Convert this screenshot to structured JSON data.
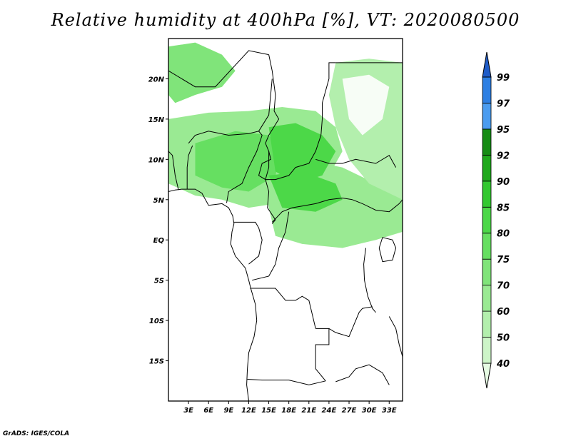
{
  "title": "Relative humidity at 400hPa [%], VT: 2020080500",
  "credit": "GrADS: IGES/COLA",
  "map": {
    "lon_range": [
      0,
      35
    ],
    "lat_range": [
      -20,
      25
    ],
    "lat_ticks": [
      {
        "value": 20,
        "label": "20N"
      },
      {
        "value": 15,
        "label": "15N"
      },
      {
        "value": 10,
        "label": "10N"
      },
      {
        "value": 5,
        "label": "5N"
      },
      {
        "value": 0,
        "label": "EQ"
      },
      {
        "value": -5,
        "label": "5S"
      },
      {
        "value": -10,
        "label": "10S"
      },
      {
        "value": -15,
        "label": "15S"
      }
    ],
    "lon_ticks": [
      {
        "value": 3,
        "label": "3E"
      },
      {
        "value": 6,
        "label": "6E"
      },
      {
        "value": 9,
        "label": "9E"
      },
      {
        "value": 12,
        "label": "12E"
      },
      {
        "value": 15,
        "label": "15E"
      },
      {
        "value": 18,
        "label": "18E"
      },
      {
        "value": 21,
        "label": "21E"
      },
      {
        "value": 24,
        "label": "24E"
      },
      {
        "value": 27,
        "label": "27E"
      },
      {
        "value": 30,
        "label": "30E"
      },
      {
        "value": 33,
        "label": "33E"
      }
    ]
  },
  "colorbar": {
    "levels": [
      "40",
      "50",
      "60",
      "70",
      "75",
      "80",
      "85",
      "90",
      "92",
      "95",
      "97",
      "99"
    ],
    "colors": [
      "#e6fbe3",
      "#cdf5c8",
      "#b3efad",
      "#9aea93",
      "#80e47a",
      "#66df61",
      "#4cd848",
      "#33c830",
      "#1fa91c",
      "#158c14",
      "#4b9cf0",
      "#2d7fe3",
      "#1f5cc8"
    ]
  },
  "humidity_areas": [
    {
      "name": "northwest-moist-region",
      "level": 4,
      "points": [
        [
          0,
          24
        ],
        [
          4,
          24.5
        ],
        [
          8,
          23
        ],
        [
          10,
          21
        ],
        [
          8,
          19
        ],
        [
          4,
          18
        ],
        [
          1,
          17
        ],
        [
          0,
          18
        ]
      ]
    },
    {
      "name": "west-africa-moist-band",
      "level": 3,
      "points": [
        [
          0,
          15
        ],
        [
          6,
          15.8
        ],
        [
          12,
          16
        ],
        [
          17,
          16.5
        ],
        [
          22,
          16
        ],
        [
          25,
          14
        ],
        [
          26,
          11
        ],
        [
          24,
          8
        ],
        [
          20,
          6
        ],
        [
          16,
          4.5
        ],
        [
          12,
          4
        ],
        [
          8,
          5
        ],
        [
          4,
          5.5
        ],
        [
          0,
          7
        ]
      ]
    },
    {
      "name": "central-africa-moist-band",
      "level": 3,
      "points": [
        [
          14,
          9
        ],
        [
          20,
          10
        ],
        [
          26,
          9
        ],
        [
          31,
          7
        ],
        [
          35,
          5
        ],
        [
          35,
          1
        ],
        [
          31,
          0
        ],
        [
          26,
          -1
        ],
        [
          20,
          -0.5
        ],
        [
          16,
          0.5
        ],
        [
          15,
          4
        ]
      ]
    },
    {
      "name": "eastern-moist-region",
      "level": 2,
      "points": [
        [
          25,
          22
        ],
        [
          30,
          22.5
        ],
        [
          35,
          22
        ],
        [
          35,
          5
        ],
        [
          30,
          7
        ],
        [
          27,
          10
        ],
        [
          25,
          14
        ],
        [
          24,
          18
        ]
      ]
    },
    {
      "name": "nigeria-moist-core",
      "level": 5,
      "points": [
        [
          4,
          12
        ],
        [
          10,
          13.5
        ],
        [
          15,
          13
        ],
        [
          17,
          11
        ],
        [
          16,
          8
        ],
        [
          12,
          6
        ],
        [
          8,
          6.5
        ],
        [
          4,
          8
        ]
      ]
    },
    {
      "name": "chad-moist-core",
      "level": 6,
      "points": [
        [
          15,
          14
        ],
        [
          19,
          14.5
        ],
        [
          23,
          13
        ],
        [
          25,
          11
        ],
        [
          23,
          8
        ],
        [
          19,
          7
        ],
        [
          16,
          8.5
        ]
      ]
    },
    {
      "name": "car-moist-core",
      "level": 6,
      "points": [
        [
          15,
          8
        ],
        [
          20,
          8.5
        ],
        [
          25,
          7
        ],
        [
          26,
          5
        ],
        [
          22,
          3.5
        ],
        [
          17,
          4
        ]
      ]
    },
    {
      "name": "eastern-dry-core",
      "level": 0,
      "points": [
        [
          26,
          20
        ],
        [
          30,
          20.5
        ],
        [
          33,
          19
        ],
        [
          32,
          15
        ],
        [
          29,
          13
        ],
        [
          27,
          15
        ]
      ]
    }
  ],
  "borders": [
    {
      "name": "coastline-west-africa",
      "points": [
        [
          0,
          6
        ],
        [
          1,
          6.2
        ],
        [
          2,
          6.3
        ],
        [
          4,
          6.3
        ],
        [
          5,
          5.8
        ],
        [
          6,
          4.3
        ],
        [
          8,
          4.5
        ],
        [
          9,
          4
        ],
        [
          9.6,
          3
        ],
        [
          9.8,
          2
        ],
        [
          9.5,
          1
        ],
        [
          9.3,
          -0.5
        ],
        [
          10,
          -2
        ],
        [
          11.5,
          -3.5
        ],
        [
          12,
          -5
        ],
        [
          12.3,
          -6
        ],
        [
          13,
          -8
        ],
        [
          13.2,
          -10
        ],
        [
          12.8,
          -12
        ],
        [
          12,
          -14
        ],
        [
          11.8,
          -16
        ],
        [
          11.7,
          -18
        ],
        [
          12,
          -20
        ]
      ]
    },
    {
      "name": "algeria-niger-mali-east",
      "points": [
        [
          0,
          21
        ],
        [
          4,
          19
        ],
        [
          7,
          19
        ],
        [
          12,
          23.5
        ],
        [
          15,
          23
        ]
      ]
    },
    {
      "name": "chad-libya-sudan",
      "points": [
        [
          15,
          23
        ],
        [
          15.5,
          21
        ],
        [
          16,
          18
        ],
        [
          15.8,
          16
        ],
        [
          16.5,
          15
        ],
        [
          15,
          13
        ],
        [
          14.5,
          12
        ],
        [
          15,
          11
        ],
        [
          15.3,
          10
        ],
        [
          14,
          9.5
        ],
        [
          13.5,
          8
        ],
        [
          14.5,
          7.5
        ],
        [
          16,
          7.5
        ],
        [
          18,
          8
        ],
        [
          19,
          9
        ],
        [
          21,
          9.5
        ],
        [
          22,
          11
        ],
        [
          22.8,
          13
        ],
        [
          23,
          15
        ],
        [
          23,
          17
        ],
        [
          24,
          20
        ],
        [
          24,
          22
        ],
        [
          25,
          22
        ]
      ]
    },
    {
      "name": "sudan-egypt",
      "points": [
        [
          25,
          22
        ],
        [
          35,
          22
        ]
      ]
    },
    {
      "name": "niger-nigeria",
      "points": [
        [
          3,
          12
        ],
        [
          4,
          13
        ],
        [
          6,
          13.5
        ],
        [
          9,
          13
        ],
        [
          12,
          13.2
        ],
        [
          13.5,
          13.5
        ],
        [
          14,
          13
        ],
        [
          13.2,
          11
        ],
        [
          12,
          9
        ],
        [
          11,
          7
        ],
        [
          10,
          6.5
        ],
        [
          9,
          6
        ],
        [
          8.7,
          4.6
        ]
      ]
    },
    {
      "name": "niger-chad",
      "points": [
        [
          13.5,
          13.5
        ],
        [
          15,
          15.5
        ],
        [
          15.5,
          20
        ]
      ]
    },
    {
      "name": "benin-nigeria",
      "points": [
        [
          2.8,
          6.3
        ],
        [
          2.8,
          9
        ],
        [
          3,
          10.5
        ],
        [
          3.6,
          11.7
        ]
      ]
    },
    {
      "name": "togo-ghana",
      "points": [
        [
          1.5,
          6.2
        ],
        [
          1,
          8
        ],
        [
          0.6,
          10.5
        ],
        [
          0,
          11
        ]
      ]
    },
    {
      "name": "cameroon-car",
      "points": [
        [
          15,
          11
        ],
        [
          15,
          9
        ],
        [
          14.5,
          7.5
        ],
        [
          15,
          6
        ],
        [
          14.8,
          4
        ],
        [
          16,
          2.5
        ],
        [
          15.5,
          2
        ]
      ]
    },
    {
      "name": "car-drc",
      "points": [
        [
          15.5,
          2.2
        ],
        [
          17,
          3.5
        ],
        [
          18.5,
          4
        ],
        [
          20,
          4.2
        ],
        [
          22,
          4.5
        ],
        [
          24,
          5
        ],
        [
          26,
          5.2
        ],
        [
          27.5,
          5
        ]
      ]
    },
    {
      "name": "south-sudan-sudan",
      "points": [
        [
          22,
          10
        ],
        [
          24,
          9.5
        ],
        [
          26,
          9.5
        ],
        [
          28,
          10
        ],
        [
          31,
          9.5
        ],
        [
          33,
          10.5
        ],
        [
          34,
          9
        ]
      ]
    },
    {
      "name": "south-sudan-uganda-drc",
      "points": [
        [
          27.5,
          5
        ],
        [
          29,
          4.5
        ],
        [
          31,
          3.7
        ],
        [
          33,
          3.5
        ],
        [
          34.5,
          4.5
        ],
        [
          35,
          5
        ]
      ]
    },
    {
      "name": "gabon-congo",
      "points": [
        [
          9.8,
          2.2
        ],
        [
          11.3,
          2.2
        ],
        [
          13,
          2.2
        ],
        [
          13.5,
          1.5
        ],
        [
          14,
          0
        ],
        [
          13.5,
          -2
        ],
        [
          12,
          -3
        ]
      ]
    },
    {
      "name": "congo-drc",
      "points": [
        [
          18,
          3.5
        ],
        [
          17.5,
          1
        ],
        [
          16.5,
          -1
        ],
        [
          16,
          -3
        ],
        [
          15,
          -4.5
        ],
        [
          12.5,
          -5
        ]
      ]
    },
    {
      "name": "drc-angola-north",
      "points": [
        [
          12.2,
          -6
        ],
        [
          14,
          -6
        ],
        [
          16,
          -6
        ],
        [
          17.5,
          -7.5
        ],
        [
          19,
          -7.5
        ],
        [
          20,
          -7
        ],
        [
          21,
          -7.5
        ],
        [
          22,
          -11
        ]
      ]
    },
    {
      "name": "angola-zambia",
      "points": [
        [
          22,
          -11
        ],
        [
          24,
          -11
        ],
        [
          24,
          -13
        ],
        [
          22,
          -13
        ],
        [
          22,
          -16
        ],
        [
          23.5,
          -17.5
        ]
      ]
    },
    {
      "name": "angola-namibia",
      "points": [
        [
          11.8,
          -17.3
        ],
        [
          14,
          -17.4
        ],
        [
          18,
          -17.4
        ],
        [
          21,
          -18
        ],
        [
          23.5,
          -17.5
        ]
      ]
    },
    {
      "name": "zambia-drc",
      "points": [
        [
          24,
          -11
        ],
        [
          25,
          -11.5
        ],
        [
          27,
          -12
        ],
        [
          28.5,
          -9
        ],
        [
          29,
          -8.5
        ],
        [
          30.5,
          -8.3
        ]
      ]
    },
    {
      "name": "east-african-rift",
      "points": [
        [
          29.5,
          -1
        ],
        [
          29.2,
          -3
        ],
        [
          29.3,
          -5
        ],
        [
          29.8,
          -7
        ],
        [
          30.5,
          -8.5
        ],
        [
          31,
          -9
        ]
      ]
    },
    {
      "name": "lake-victoria-region",
      "points": [
        [
          31.5,
          -1
        ],
        [
          32,
          0.3
        ],
        [
          33.5,
          0
        ],
        [
          34,
          -1
        ],
        [
          33.5,
          -2.5
        ],
        [
          32,
          -2.7
        ],
        [
          31.5,
          -1
        ]
      ]
    },
    {
      "name": "mozambique-malawi",
      "points": [
        [
          33,
          -9.5
        ],
        [
          34,
          -11
        ],
        [
          34.5,
          -13
        ],
        [
          35,
          -14.5
        ]
      ]
    },
    {
      "name": "zimbabwe-zambia",
      "points": [
        [
          25,
          -17.6
        ],
        [
          27,
          -17
        ],
        [
          28,
          -16
        ],
        [
          30,
          -15.5
        ],
        [
          31,
          -16
        ],
        [
          32,
          -16.5
        ],
        [
          33,
          -18
        ]
      ]
    }
  ]
}
